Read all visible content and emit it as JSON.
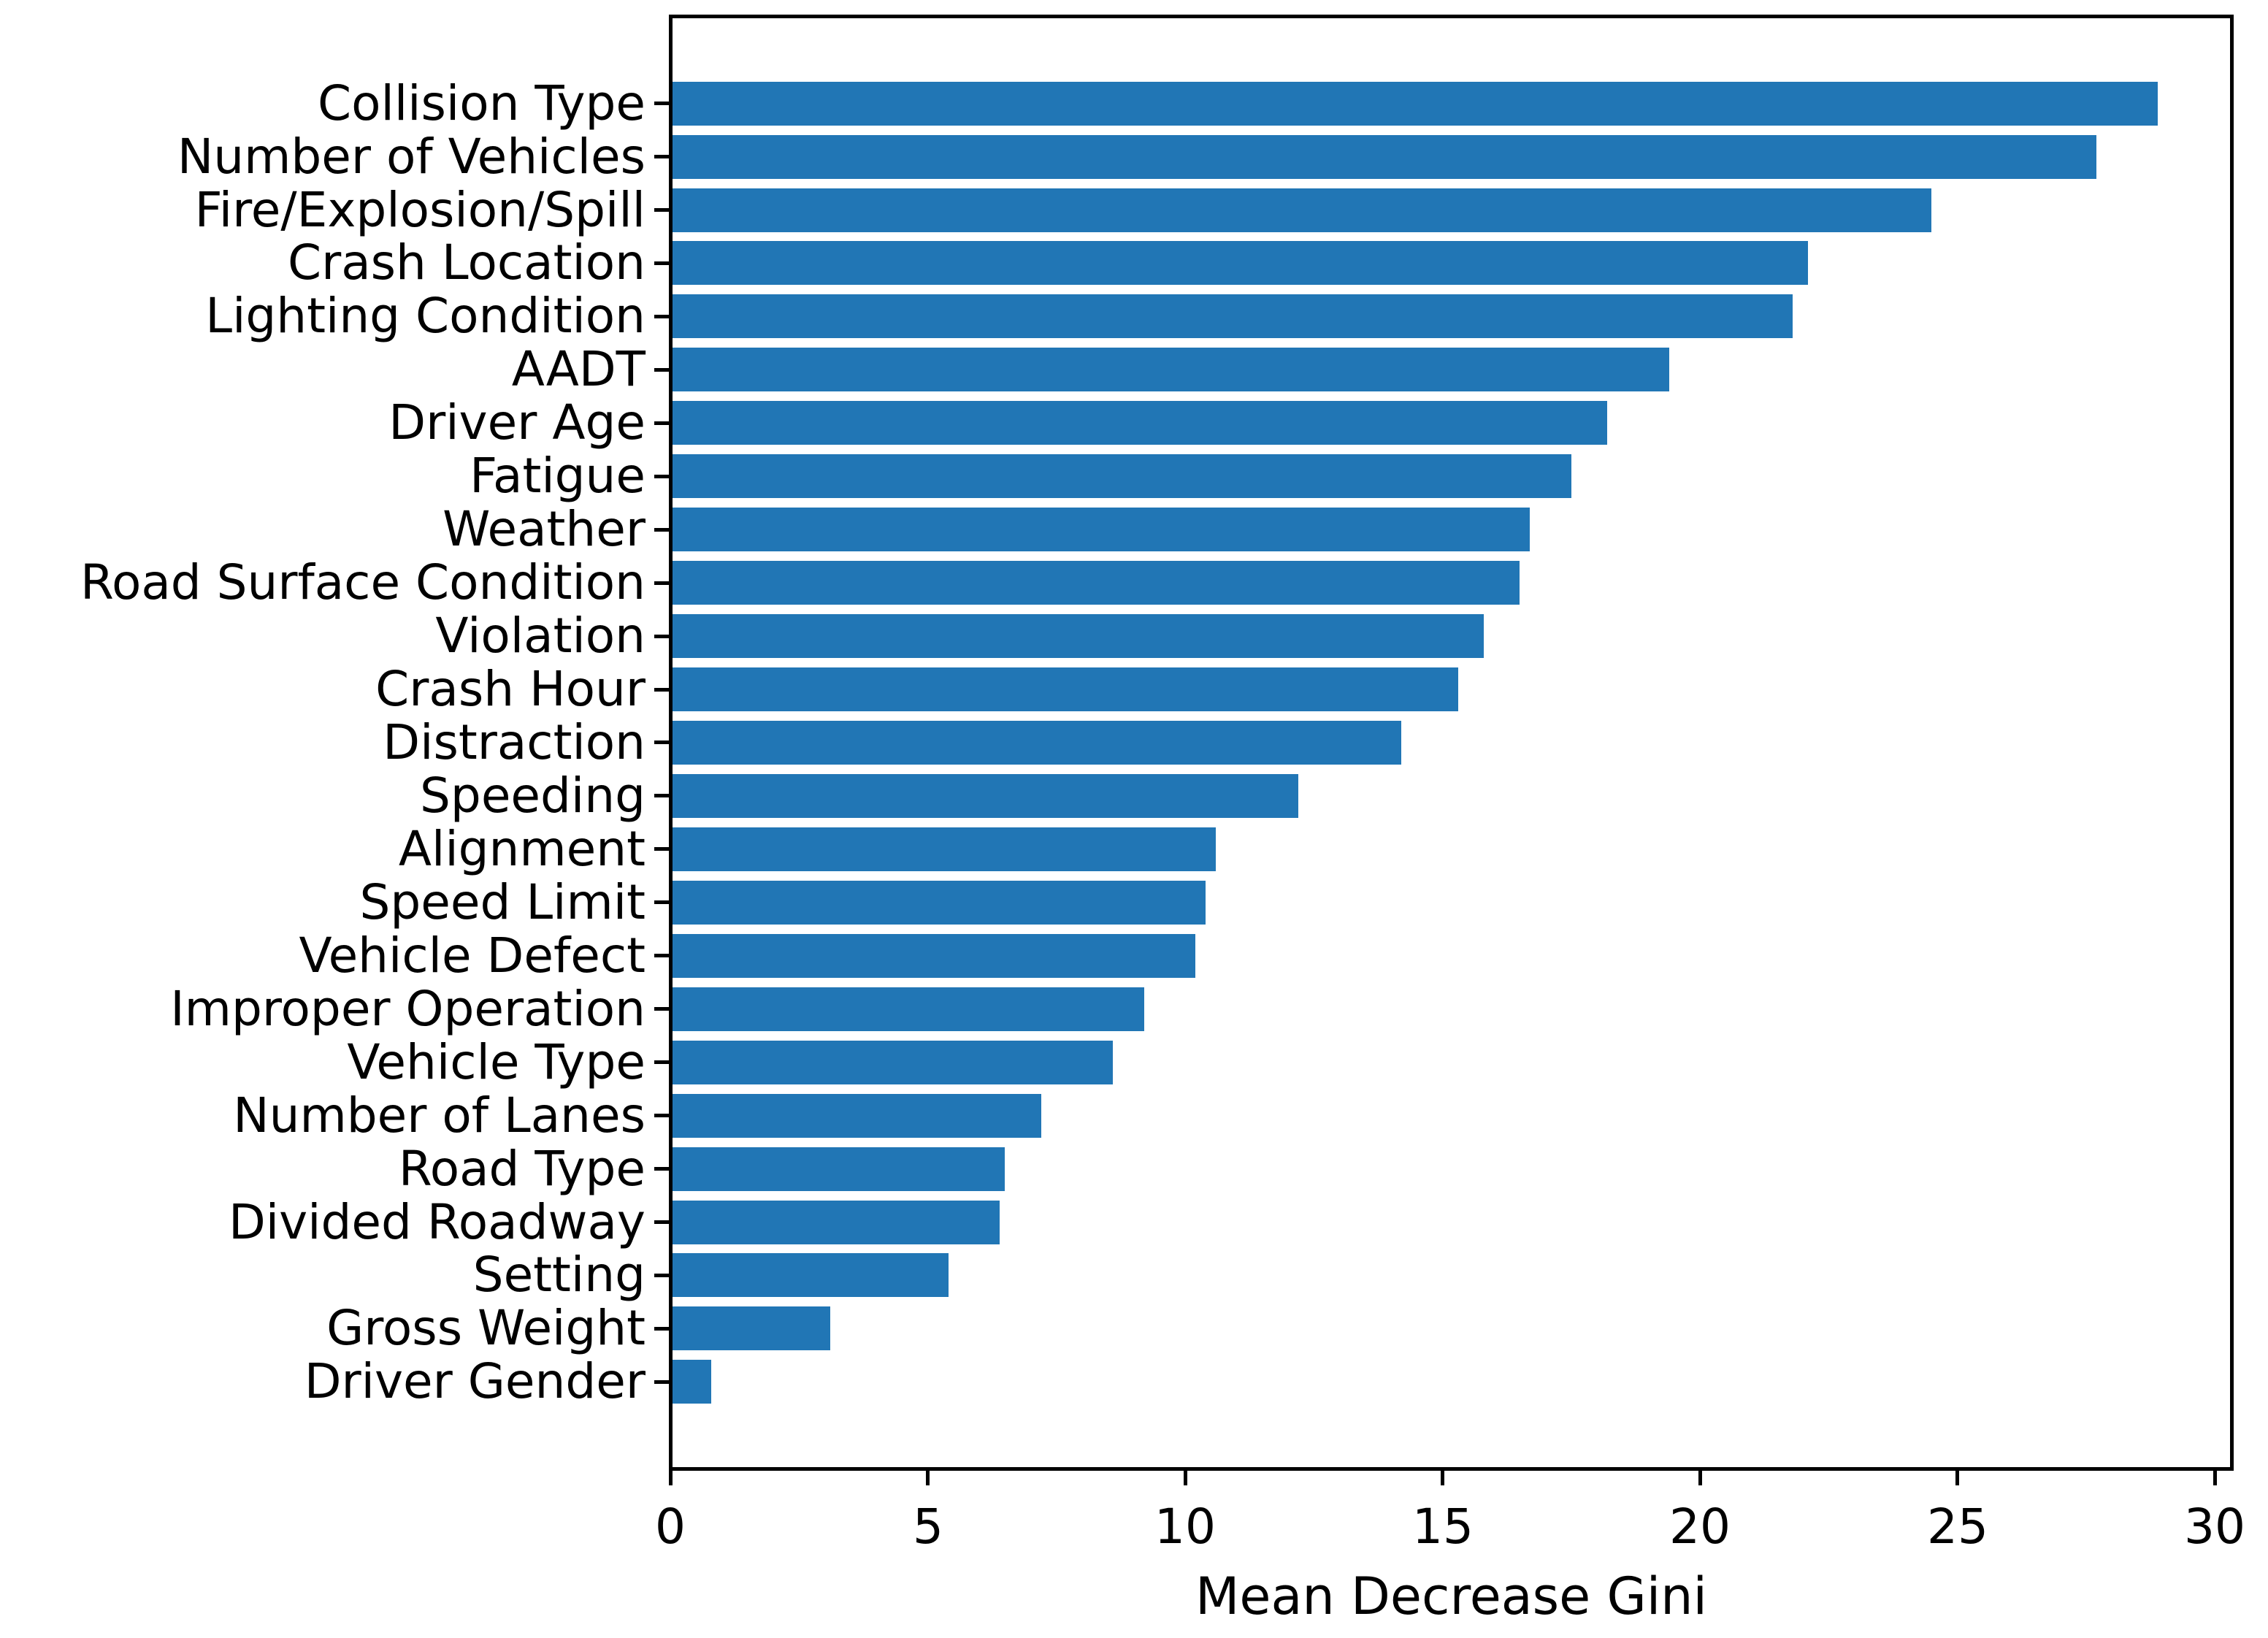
{
  "chart_data": {
    "type": "bar",
    "orientation": "horizontal",
    "title": "",
    "xlabel": "Mean Decrease Gini",
    "ylabel": "",
    "xlim": [
      0,
      30.34
    ],
    "x_ticks": [
      0,
      5,
      10,
      15,
      20,
      25,
      30
    ],
    "grid": false,
    "legend": "none",
    "bar_color": "#2176b5",
    "axis_color": "#000000",
    "categories": [
      "Collision Type",
      "Number of Vehicles",
      "Fire/Explosion/Spill",
      "Crash Location",
      "Lighting Condition",
      "AADT",
      "Driver Age",
      "Fatigue",
      "Weather",
      "Road Surface Condition",
      "Violation",
      "Crash Hour",
      "Distraction",
      "Speeding",
      "Alignment",
      "Speed Limit",
      "Vehicle Defect",
      "Improper Operation",
      "Vehicle Type",
      "Number of Lanes",
      "Road Type",
      "Divided Roadway",
      "Setting",
      "Gross Weight",
      "Driver Gender"
    ],
    "values": [
      28.9,
      27.7,
      24.5,
      22.1,
      21.8,
      19.4,
      18.2,
      17.5,
      16.7,
      16.5,
      15.8,
      15.3,
      14.2,
      12.2,
      10.6,
      10.4,
      10.2,
      9.2,
      8.6,
      7.2,
      6.5,
      6.4,
      5.4,
      3.1,
      0.8
    ]
  }
}
